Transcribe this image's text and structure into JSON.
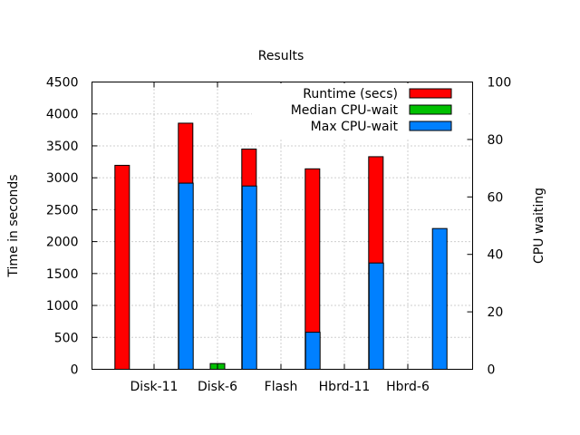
{
  "chart_data": {
    "type": "bar",
    "title": "Results",
    "ylabel": "Time in seconds",
    "y2label": "CPU waiting",
    "categories": [
      "Disk-11",
      "Disk-6",
      "Flash",
      "Hbrd-11",
      "Hbrd-6"
    ],
    "ylim": [
      0,
      4500
    ],
    "yticks": [
      0,
      500,
      1000,
      1500,
      2000,
      2500,
      3000,
      3500,
      4000,
      4500
    ],
    "y2lim": [
      0,
      100
    ],
    "y2ticks": [
      0,
      20,
      40,
      60,
      80,
      100
    ],
    "grid": true,
    "legend_position": "top-right",
    "series": [
      {
        "name": "Runtime (secs)",
        "axis": "y",
        "color": "#ff0000",
        "values": [
          3195,
          3855,
          3450,
          3140,
          3330
        ]
      },
      {
        "name": "Median CPU-wait",
        "axis": "y2",
        "color": "#00c000",
        "values": [
          0,
          2,
          0,
          0,
          0
        ]
      },
      {
        "name": "Max CPU-wait",
        "axis": "y2",
        "color": "#0080ff",
        "values": [
          64.8,
          63.8,
          12.9,
          37,
          49
        ]
      }
    ]
  }
}
